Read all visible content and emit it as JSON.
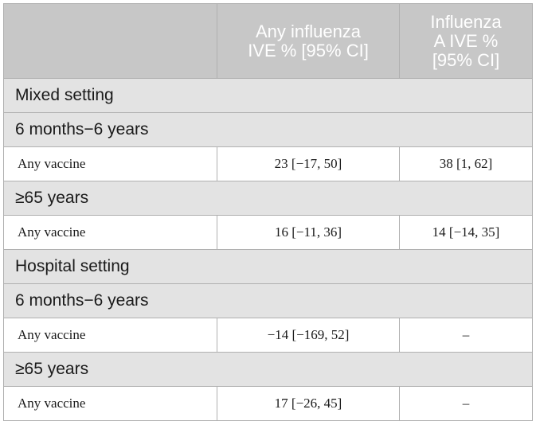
{
  "table": {
    "headers": [
      "",
      [
        "Any influenza",
        "IVE % [95% CI]"
      ],
      [
        "Influenza",
        "A IVE %",
        "[95% CI]"
      ]
    ],
    "rows": [
      {
        "type": "section",
        "label": "Mixed setting"
      },
      {
        "type": "section",
        "label": "6 months−6 years"
      },
      {
        "type": "data",
        "cells": [
          "Any vaccine",
          "23 [−17, 50]",
          "38 [1, 62]"
        ]
      },
      {
        "type": "section",
        "label": "≥65 years"
      },
      {
        "type": "data",
        "cells": [
          "Any vaccine",
          "16 [−11, 36]",
          "14 [−14, 35]"
        ]
      },
      {
        "type": "section",
        "label": "Hospital setting"
      },
      {
        "type": "section",
        "label": "6 months−6 years"
      },
      {
        "type": "data",
        "cells": [
          "Any vaccine",
          "−14 [−169, 52]",
          "–"
        ]
      },
      {
        "type": "section",
        "label": "≥65 years"
      },
      {
        "type": "data",
        "cells": [
          "Any vaccine",
          "17 [−26, 45]",
          "–"
        ]
      }
    ]
  },
  "colors": {
    "header_bg": "#c7c7c7",
    "header_text": "#ffffff",
    "section_bg": "#e3e3e3",
    "data_bg": "#ffffff",
    "border": "#b0b0b0"
  }
}
